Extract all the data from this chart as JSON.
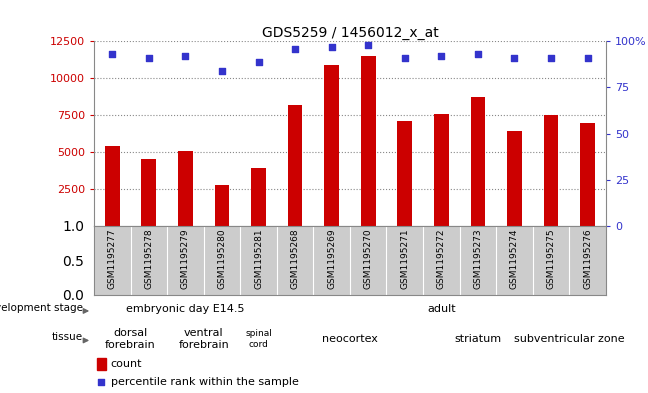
{
  "title": "GDS5259 / 1456012_x_at",
  "samples": [
    "GSM1195277",
    "GSM1195278",
    "GSM1195279",
    "GSM1195280",
    "GSM1195281",
    "GSM1195268",
    "GSM1195269",
    "GSM1195270",
    "GSM1195271",
    "GSM1195272",
    "GSM1195273",
    "GSM1195274",
    "GSM1195275",
    "GSM1195276"
  ],
  "counts": [
    5400,
    4500,
    5100,
    2800,
    3900,
    8200,
    10900,
    11500,
    7100,
    7600,
    8700,
    6400,
    7500,
    7000
  ],
  "percentiles": [
    93,
    91,
    92,
    84,
    89,
    96,
    97,
    98,
    91,
    92,
    93,
    91,
    91,
    91
  ],
  "bar_color": "#cc0000",
  "dot_color": "#3333cc",
  "ylim_left": [
    0,
    12500
  ],
  "ylim_right": [
    0,
    100
  ],
  "yticks_left": [
    2500,
    5000,
    7500,
    10000,
    12500
  ],
  "yticks_right": [
    0,
    25,
    50,
    75,
    100
  ],
  "dev_stage_groups": [
    {
      "label": "embryonic day E14.5",
      "start": 0,
      "end": 5,
      "color": "#aaeaaa"
    },
    {
      "label": "adult",
      "start": 5,
      "end": 14,
      "color": "#44dd44"
    }
  ],
  "tissue_groups": [
    {
      "label": "dorsal\nforebrain",
      "start": 0,
      "end": 2,
      "color": "#ee88ee"
    },
    {
      "label": "ventral\nforebrain",
      "start": 2,
      "end": 4,
      "color": "#ee88ee"
    },
    {
      "label": "spinal\ncord",
      "start": 4,
      "end": 5,
      "color": "#ee88ee"
    },
    {
      "label": "neocortex",
      "start": 5,
      "end": 9,
      "color": "#ddaadd"
    },
    {
      "label": "striatum",
      "start": 9,
      "end": 12,
      "color": "#ddaadd"
    },
    {
      "label": "subventricular zone",
      "start": 12,
      "end": 14,
      "color": "#ddaadd"
    }
  ],
  "row_label_dev": "development stage",
  "row_label_tissue": "tissue",
  "legend_count": "count",
  "legend_pct": "percentile rank within the sample",
  "bg_color": "#ffffff",
  "tick_color_left": "#cc0000",
  "tick_color_right": "#3333cc",
  "grid_color": "#888888",
  "xtick_bg": "#cccccc"
}
